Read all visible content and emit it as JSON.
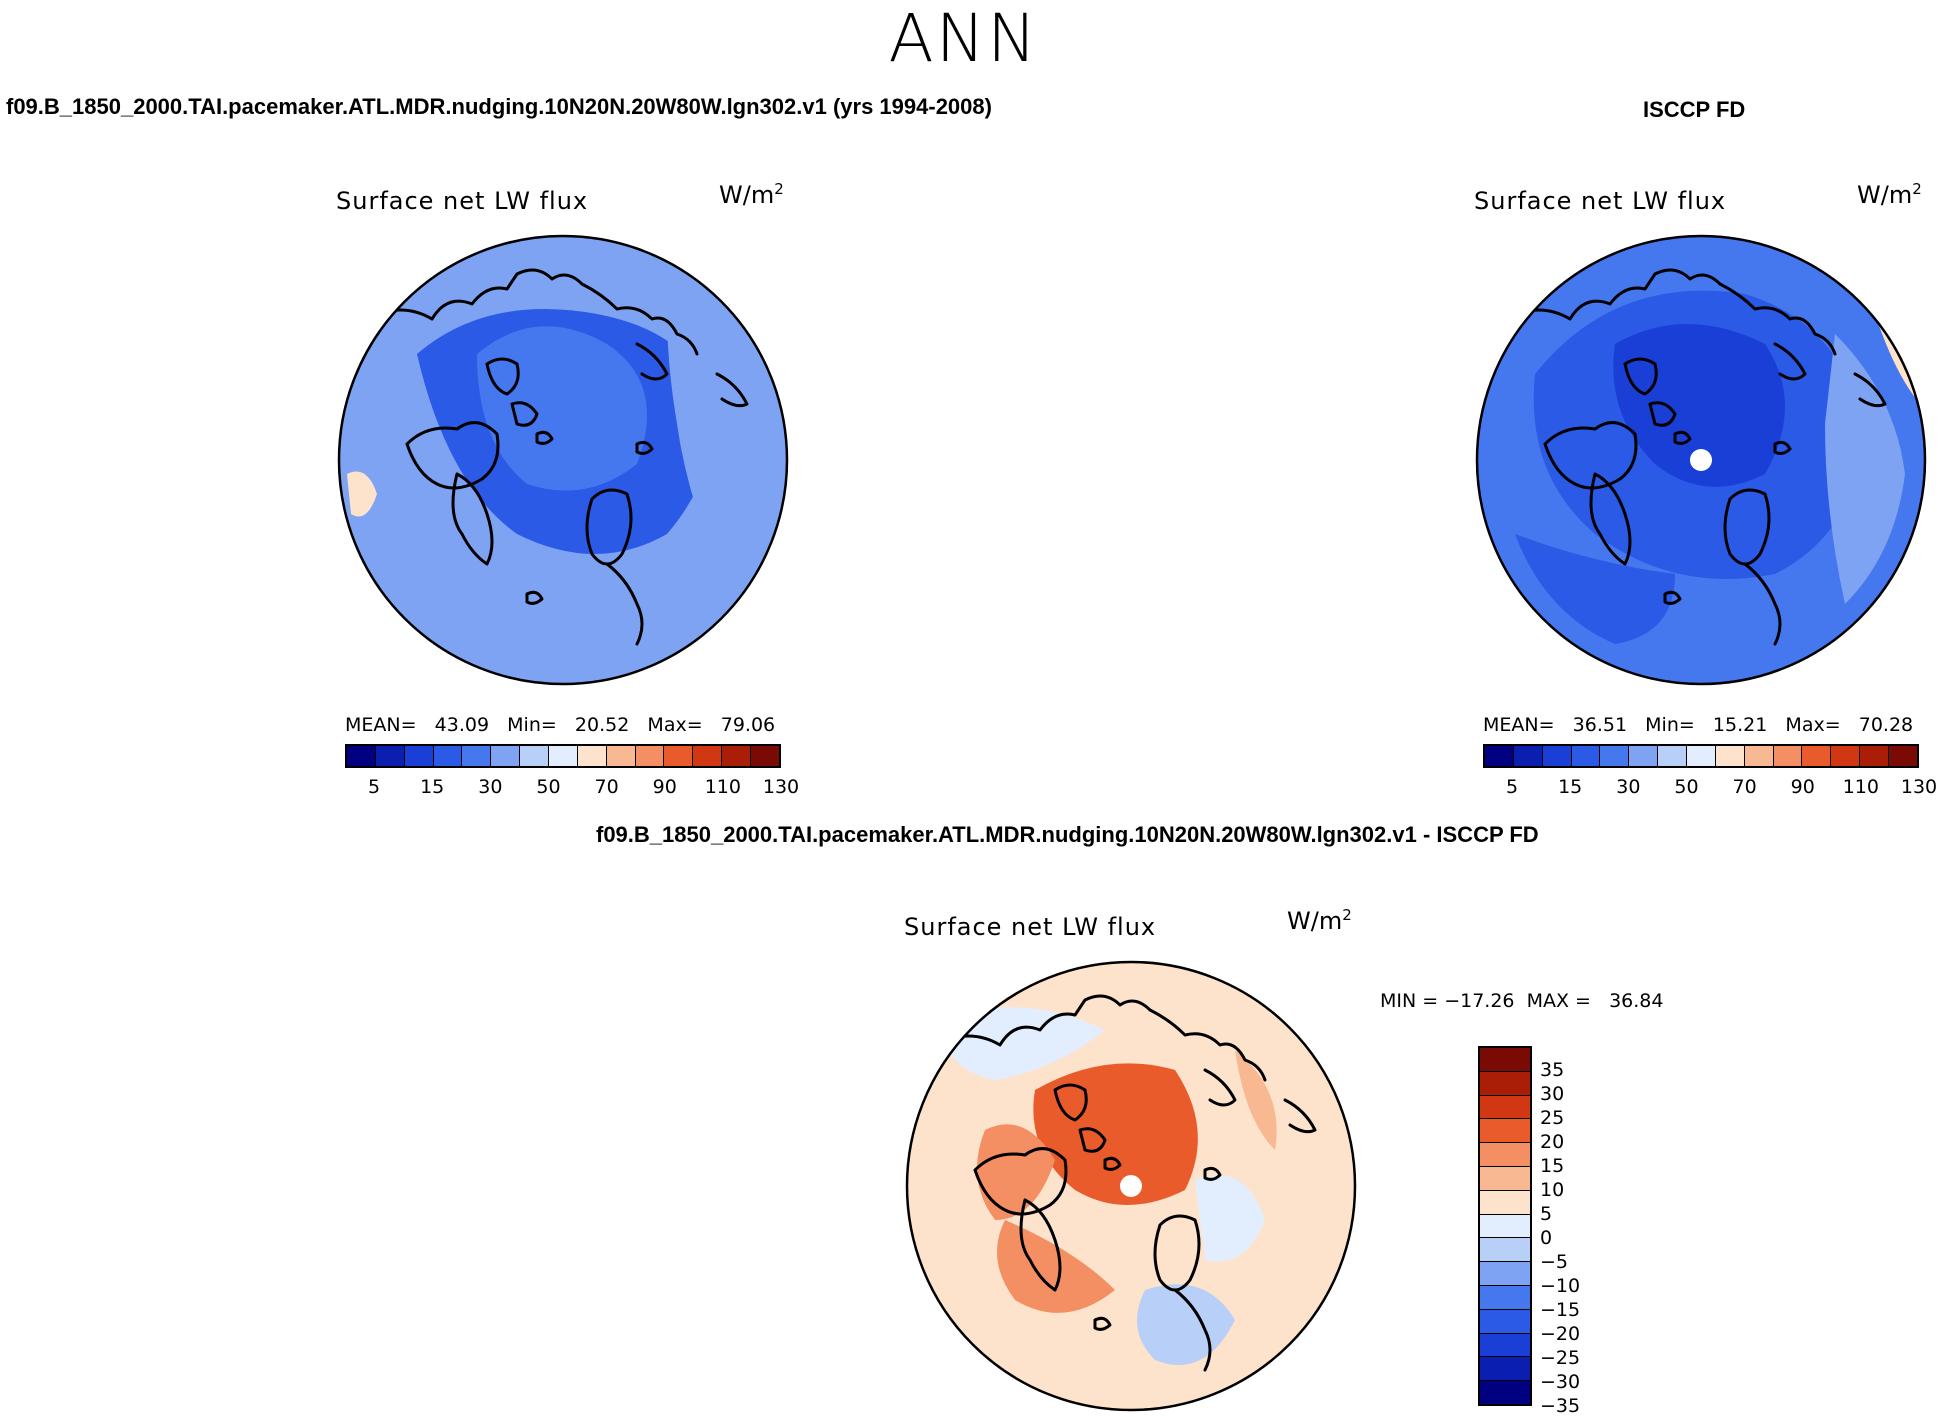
{
  "title": "ANN",
  "colors": {
    "abs_scale": [
      "#000080",
      "#0a1fb0",
      "#1a3fd6",
      "#2a5ae6",
      "#4577ee",
      "#7ea3f2",
      "#b8cff7",
      "#e2eefd",
      "#fde3cc",
      "#f8b891",
      "#f38f62",
      "#ea5b2c",
      "#d13712",
      "#aa1e08",
      "#7a0a04"
    ],
    "diff_scale": [
      "#000080",
      "#0a1fb0",
      "#1a3fd6",
      "#2a5ae6",
      "#4577ee",
      "#7ea3f2",
      "#b8cff7",
      "#e2eefd",
      "#fde3cc",
      "#f8b891",
      "#f38f62",
      "#ea5b2c",
      "#d13712",
      "#aa1e08",
      "#7a0a04"
    ],
    "coast": "#000000"
  },
  "panels": [
    {
      "case_title": "f09.B_1850_2000.TAI.pacemaker.ATL.MDR.nudging.10N20N.20W80W.lgn302.v1 (yrs 1994-2008)",
      "var_title": "Surface net LW flux",
      "units_base": "W/m",
      "units_exp": "2",
      "stats_text": "MEAN=   43.09   Min=   20.52   Max=   79.06",
      "field": {
        "mean": 43.09,
        "min": 20.52,
        "max": 79.06
      },
      "base_color": "#7ea3f2",
      "ticks": [
        "5",
        "15",
        "30",
        "50",
        "70",
        "90",
        "110",
        "130"
      ]
    },
    {
      "case_title": "ISCCP FD",
      "var_title": "Surface net LW flux",
      "units_base": "W/m",
      "units_exp": "2",
      "stats_text": "MEAN=   36.51   Min=   15.21   Max=   70.28",
      "field": {
        "mean": 36.51,
        "min": 15.21,
        "max": 70.28
      },
      "base_color": "#4577ee",
      "ticks": [
        "5",
        "15",
        "30",
        "50",
        "70",
        "90",
        "110",
        "130"
      ]
    },
    {
      "case_title": "f09.B_1850_2000.TAI.pacemaker.ATL.MDR.nudging.10N20N.20W80W.lgn302.v1 - ISCCP FD",
      "var_title": "Surface net LW flux",
      "units_base": "W/m",
      "units_exp": "2",
      "stats_text": "MIN = −17.26  MAX =   36.84",
      "field": {
        "min": -17.26,
        "max": 36.84
      },
      "base_color": "#fde3cc",
      "ticks": [
        "35",
        "30",
        "25",
        "20",
        "15",
        "10",
        "5",
        "0",
        "−5",
        "−10",
        "−15",
        "−20",
        "−25",
        "−30",
        "−35"
      ]
    }
  ]
}
